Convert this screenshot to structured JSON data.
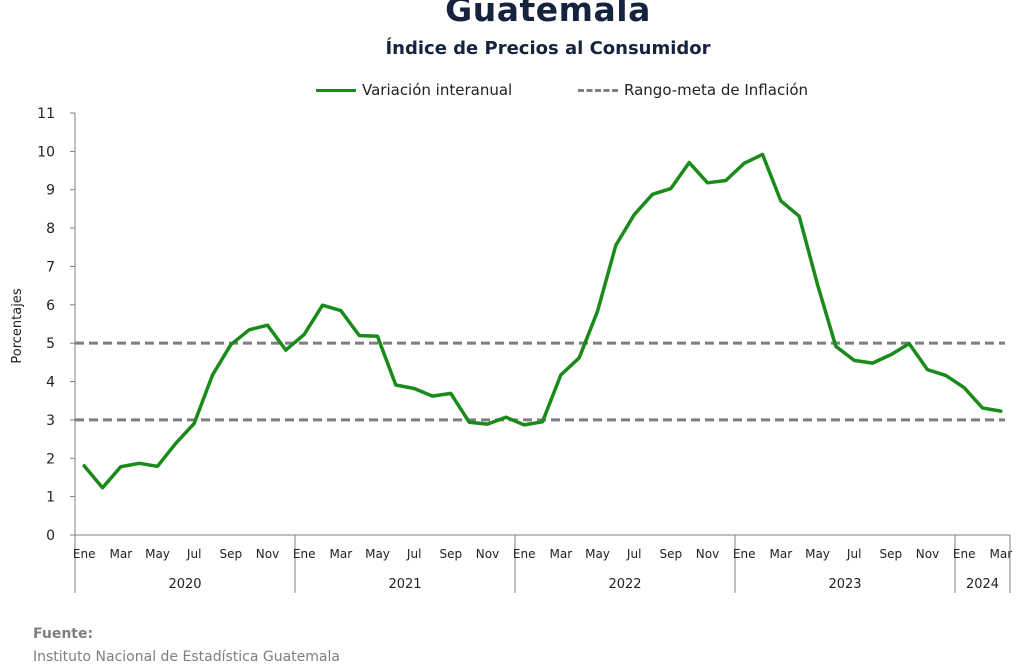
{
  "chart_data": {
    "type": "line",
    "title": "Guatemala",
    "subtitle": "Índice de Precios al Consumidor",
    "ylabel": "Porcentajes",
    "ylim": [
      0,
      11
    ],
    "yticks": [
      0,
      1,
      2,
      3,
      4,
      5,
      6,
      7,
      8,
      9,
      10,
      11
    ],
    "grid": false,
    "legend_position": "top-center",
    "years": [
      {
        "label": "2020",
        "months": 12
      },
      {
        "label": "2021",
        "months": 12
      },
      {
        "label": "2022",
        "months": 12
      },
      {
        "label": "2023",
        "months": 12
      },
      {
        "label": "2024",
        "months": 3
      }
    ],
    "month_tick_labels": [
      [
        "Ene",
        "Mar",
        "May",
        "Jul",
        "Sep",
        "Nov"
      ],
      [
        "Ene",
        "Mar",
        "May",
        "Jul",
        "Sep",
        "Nov"
      ],
      [
        "Ene",
        "Mar",
        "May",
        "Jul",
        "Sep",
        "Nov"
      ],
      [
        "Ene",
        "Mar",
        "May",
        "Jul",
        "Sep",
        "Nov"
      ],
      [
        "Ene",
        "Mar"
      ]
    ],
    "x": [
      "2020-01",
      "2020-02",
      "2020-03",
      "2020-04",
      "2020-05",
      "2020-06",
      "2020-07",
      "2020-08",
      "2020-09",
      "2020-10",
      "2020-11",
      "2020-12",
      "2021-01",
      "2021-02",
      "2021-03",
      "2021-04",
      "2021-05",
      "2021-06",
      "2021-07",
      "2021-08",
      "2021-09",
      "2021-10",
      "2021-11",
      "2021-12",
      "2022-01",
      "2022-02",
      "2022-03",
      "2022-04",
      "2022-05",
      "2022-06",
      "2022-07",
      "2022-08",
      "2022-09",
      "2022-10",
      "2022-11",
      "2022-12",
      "2023-01",
      "2023-02",
      "2023-03",
      "2023-04",
      "2023-05",
      "2023-06",
      "2023-07",
      "2023-08",
      "2023-09",
      "2023-10",
      "2023-11",
      "2023-12",
      "2024-01",
      "2024-02",
      "2024-03"
    ],
    "series": [
      {
        "name": "Variación interanual",
        "color": "#1a8a1a",
        "style": "solid",
        "values": [
          1.8,
          1.23,
          1.78,
          1.87,
          1.79,
          2.39,
          2.91,
          4.17,
          4.96,
          5.35,
          5.47,
          4.82,
          5.23,
          5.99,
          5.85,
          5.2,
          5.18,
          3.91,
          3.82,
          3.62,
          3.69,
          2.94,
          2.89,
          3.07,
          2.87,
          2.95,
          4.17,
          4.62,
          5.83,
          7.55,
          8.35,
          8.88,
          9.03,
          9.71,
          9.18,
          9.24,
          9.69,
          9.92,
          8.71,
          8.31,
          6.53,
          4.92,
          4.55,
          4.48,
          4.7,
          4.99,
          4.31,
          4.16,
          3.84,
          3.31,
          3.23
        ]
      },
      {
        "name": "Rango-meta de Inflación",
        "color": "#7f7f7f",
        "style": "dashed",
        "band": [
          3,
          5
        ]
      }
    ]
  },
  "source": {
    "label": "Fuente:",
    "text": "Instituto Nacional de Estadística Guatemala"
  }
}
